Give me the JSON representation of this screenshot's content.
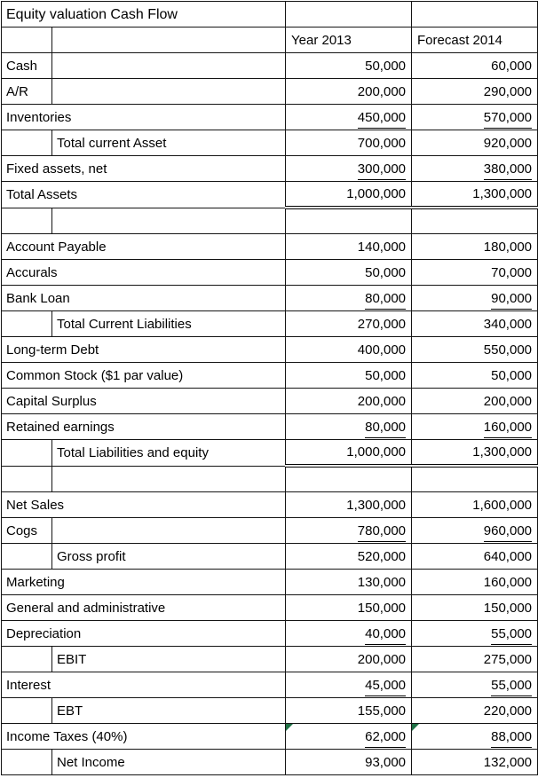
{
  "sheet": {
    "title": "Equity valuation Cash Flow",
    "columns": {
      "year": "Year 2013",
      "forecast": "Forecast 2014"
    },
    "error_flag_color": "#1e7145",
    "grid_color": "#141414"
  },
  "rows": [
    {
      "layout": "title",
      "label": "Equity valuation Cash Flow",
      "c": "",
      "d": ""
    },
    {
      "layout": "header",
      "label": "",
      "c": "Year 2013",
      "d": "Forecast 2014"
    },
    {
      "layout": "short",
      "label": "Cash",
      "c": "50,000",
      "d": "60,000"
    },
    {
      "layout": "short",
      "label": "A/R",
      "c": "200,000",
      "d": "290,000"
    },
    {
      "layout": "long",
      "label": "Inventories",
      "c": "450,000",
      "d": "570,000",
      "underline": true
    },
    {
      "layout": "indent",
      "label": "Total current Asset",
      "c": "700,000",
      "d": "920,000"
    },
    {
      "layout": "long",
      "label": "Fixed assets, net",
      "c": "300,000",
      "d": "380,000",
      "underline": true
    },
    {
      "layout": "long",
      "label": "Total Assets",
      "c": "1,000,000",
      "d": "1,300,000",
      "double": true
    },
    {
      "layout": "blank",
      "label": "",
      "c": "",
      "d": ""
    },
    {
      "layout": "long",
      "label": "Account Payable",
      "c": "140,000",
      "d": "180,000"
    },
    {
      "layout": "long",
      "label": "Accurals",
      "c": "50,000",
      "d": "70,000"
    },
    {
      "layout": "long",
      "label": "Bank Loan",
      "c": "80,000",
      "d": "90,000",
      "underline": true
    },
    {
      "layout": "indent",
      "label": "Total Current Liabilities",
      "c": "270,000",
      "d": "340,000"
    },
    {
      "layout": "long",
      "label": "Long-term Debt",
      "c": "400,000",
      "d": "550,000"
    },
    {
      "layout": "long",
      "label": "Common Stock ($1 par value)",
      "c": "50,000",
      "d": "50,000"
    },
    {
      "layout": "long",
      "label": "Capital Surplus",
      "c": "200,000",
      "d": "200,000"
    },
    {
      "layout": "long",
      "label": "Retained earnings",
      "c": "80,000",
      "d": "160,000",
      "underline": true
    },
    {
      "layout": "indent",
      "label": "Total Liabilities and equity",
      "c": "1,000,000",
      "d": "1,300,000",
      "double": true
    },
    {
      "layout": "blank",
      "label": "",
      "c": "",
      "d": ""
    },
    {
      "layout": "long",
      "label": "Net Sales",
      "c": "1,300,000",
      "d": "1,600,000"
    },
    {
      "layout": "short",
      "label": "Cogs",
      "c": "780,000",
      "d": "960,000",
      "underline": true
    },
    {
      "layout": "indent",
      "label": "Gross profit",
      "c": "520,000",
      "d": "640,000"
    },
    {
      "layout": "long",
      "label": "Marketing",
      "c": "130,000",
      "d": "160,000"
    },
    {
      "layout": "long",
      "label": "General and administrative",
      "c": "150,000",
      "d": "150,000"
    },
    {
      "layout": "long",
      "label": "Depreciation",
      "c": "40,000",
      "d": "55,000",
      "underline": true
    },
    {
      "layout": "indent",
      "label": "EBIT",
      "c": "200,000",
      "d": "275,000"
    },
    {
      "layout": "long",
      "label": "Interest",
      "c": "45,000",
      "d": "55,000",
      "underline": true
    },
    {
      "layout": "indent",
      "label": "EBT",
      "c": "155,000",
      "d": "220,000"
    },
    {
      "layout": "long",
      "label": "Income Taxes (40%)",
      "c": "62,000",
      "d": "88,000",
      "underline": true,
      "flag": true
    },
    {
      "layout": "indent",
      "label": "Net Income",
      "c": "93,000",
      "d": "132,000"
    }
  ]
}
